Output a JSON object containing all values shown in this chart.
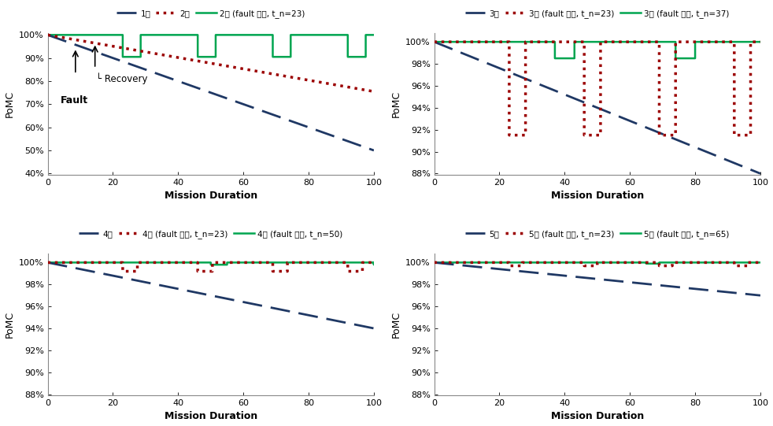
{
  "subplots": [
    {
      "ylim": [
        0.395,
        1.008
      ],
      "yticks": [
        0.4,
        0.5,
        0.6,
        0.7,
        0.8,
        0.9,
        1.0
      ],
      "ytick_labels": [
        "40%",
        "50%",
        "60%",
        "70%",
        "80%",
        "90%",
        "100%"
      ],
      "legend_labels": [
        "1대",
        "2대",
        "2대 (fault 고려, t_n=23)"
      ],
      "line1_decay": 0.5,
      "line2_decay": 0.245,
      "fault_t_n": 23,
      "fault_drop": 0.095,
      "fault_recover_dur": 5.5,
      "has_annotation": true
    },
    {
      "ylim": [
        0.879,
        1.008
      ],
      "yticks": [
        0.88,
        0.9,
        0.92,
        0.94,
        0.96,
        0.98,
        1.0
      ],
      "ytick_labels": [
        "88%",
        "90%",
        "92%",
        "94%",
        "96%",
        "98%",
        "100%"
      ],
      "legend_labels": [
        "3대",
        "3대 (fault 고려, t_n=23)",
        "3대 (fault 고려, t_n=37)"
      ],
      "line1_decay": 0.12,
      "fault1_t_n": 23,
      "fault1_drop": 0.085,
      "fault1_recover_dur": 5.0,
      "fault2_t_n": 37,
      "fault2_drop": 0.015,
      "fault2_recover_dur": 6.0,
      "has_annotation": false
    },
    {
      "ylim": [
        0.879,
        1.008
      ],
      "yticks": [
        0.88,
        0.9,
        0.92,
        0.94,
        0.96,
        0.98,
        1.0
      ],
      "ytick_labels": [
        "88%",
        "90%",
        "92%",
        "94%",
        "96%",
        "98%",
        "100%"
      ],
      "legend_labels": [
        "4대",
        "4대 (fault 고려, t_n=23)",
        "4대 (fault 고려, t_n=50)"
      ],
      "line1_decay": 0.06,
      "fault1_t_n": 23,
      "fault1_drop": 0.008,
      "fault1_recover_dur": 4.5,
      "fault2_t_n": 50,
      "fault2_drop": 0.002,
      "fault2_recover_dur": 5.0,
      "has_annotation": false
    },
    {
      "ylim": [
        0.879,
        1.008
      ],
      "yticks": [
        0.88,
        0.9,
        0.92,
        0.94,
        0.96,
        0.98,
        1.0
      ],
      "ytick_labels": [
        "88%",
        "90%",
        "92%",
        "94%",
        "96%",
        "98%",
        "100%"
      ],
      "legend_labels": [
        "5대",
        "5대 (fault 고려, t_n=23)",
        "5대 (fault 고려, t_n=65)"
      ],
      "line1_decay": 0.03,
      "fault1_t_n": 23,
      "fault1_drop": 0.003,
      "fault1_recover_dur": 4.0,
      "fault2_t_n": 65,
      "fault2_drop": 0.001,
      "fault2_recover_dur": 4.0,
      "has_annotation": false
    }
  ],
  "colors": {
    "dashed_blue": "#1F3864",
    "dotted_red": "#9B0000",
    "solid_green": "#00A550"
  },
  "xlabel": "Mission Duration",
  "ylabel": "PoMC"
}
